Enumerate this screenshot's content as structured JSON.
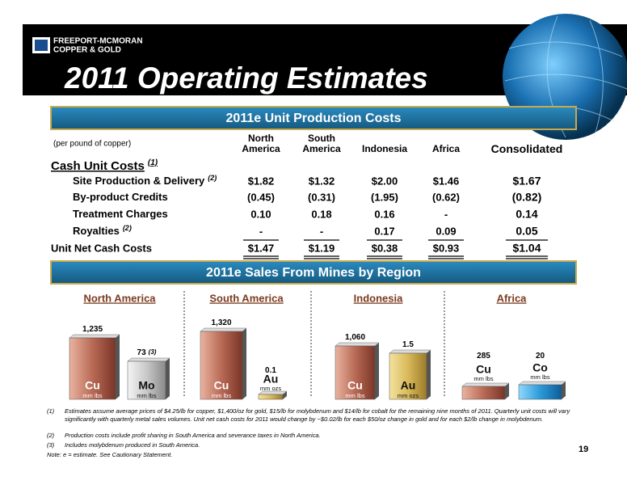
{
  "header": {
    "logo_line1": "FREEPORT-MCMORAN",
    "logo_line2": "COPPER & GOLD",
    "title": "2011 Operating Estimates"
  },
  "costs": {
    "title": "2011e Unit Production Costs",
    "unit_note": "(per pound of copper)",
    "columns": [
      "North America",
      "South America",
      "Indonesia",
      "Africa",
      "Consolidated"
    ],
    "section": "Cash Unit Costs",
    "section_note": "(1)",
    "rows": [
      {
        "label": "Site Production & Delivery",
        "note": "(2)",
        "values": [
          "$1.82",
          "$1.32",
          "$2.00",
          "$1.46",
          "$1.67"
        ]
      },
      {
        "label": "By-product Credits",
        "values": [
          "(0.45)",
          "(0.31)",
          "(1.95)",
          "(0.62)",
          "(0.82)"
        ]
      },
      {
        "label": "Treatment Charges",
        "values": [
          "0.10",
          "0.18",
          "0.16",
          "-",
          "0.14"
        ]
      },
      {
        "label": "Royalties",
        "note": "(2)",
        "values": [
          "-",
          "-",
          "0.17",
          "0.09",
          "0.05"
        ]
      }
    ],
    "total": {
      "label": "Unit Net Cash Costs",
      "values": [
        "$1.47",
        "$1.19",
        "$0.38",
        "$0.93",
        "$1.04"
      ]
    }
  },
  "sales": {
    "title": "2011e Sales From Mines by Region",
    "regions": [
      {
        "name": "North America",
        "items": [
          {
            "value": "1,235",
            "metal": "Cu",
            "unit": "mm lbs"
          },
          {
            "value": "73",
            "note": "(3)",
            "metal": "Mo",
            "unit": "mm lbs"
          }
        ]
      },
      {
        "name": "South America",
        "items": [
          {
            "value": "1,320",
            "metal": "Cu",
            "unit": "mm lbs"
          },
          {
            "value": "0.1",
            "metal": "Au",
            "unit": "mm ozs"
          }
        ]
      },
      {
        "name": "Indonesia",
        "items": [
          {
            "value": "1,060",
            "metal": "Cu",
            "unit": "mm lbs"
          },
          {
            "value": "1.5",
            "metal": "Au",
            "unit": "mm ozs"
          }
        ]
      },
      {
        "name": "Africa",
        "items": [
          {
            "value": "285",
            "metal": "Cu",
            "unit": "mm lbs"
          },
          {
            "value": "20",
            "metal": "Co",
            "unit": "mm lbs"
          }
        ]
      }
    ]
  },
  "footnotes": [
    {
      "mark": "(1)",
      "text": "Estimates assume average prices of $4.25/lb for copper, $1,400/oz for gold, $15/lb for molybdenum and $14/lb for cobalt for the remaining nine months of 2011.  Quarterly unit costs will vary significantly with quarterly metal sales volumes.  Unit net cash costs for 2011 would change by ~$0.02/lb for each $50/oz change in gold and for each $2/lb change in molybdenum."
    },
    {
      "mark": "(2)",
      "text": "Production costs include profit sharing in South America and severance taxes in North America."
    },
    {
      "mark": "(3)",
      "text": "Includes molybdenum produced in South America."
    }
  ],
  "note": "Note: e = estimate. See Cautionary Statement.",
  "page": "19"
}
